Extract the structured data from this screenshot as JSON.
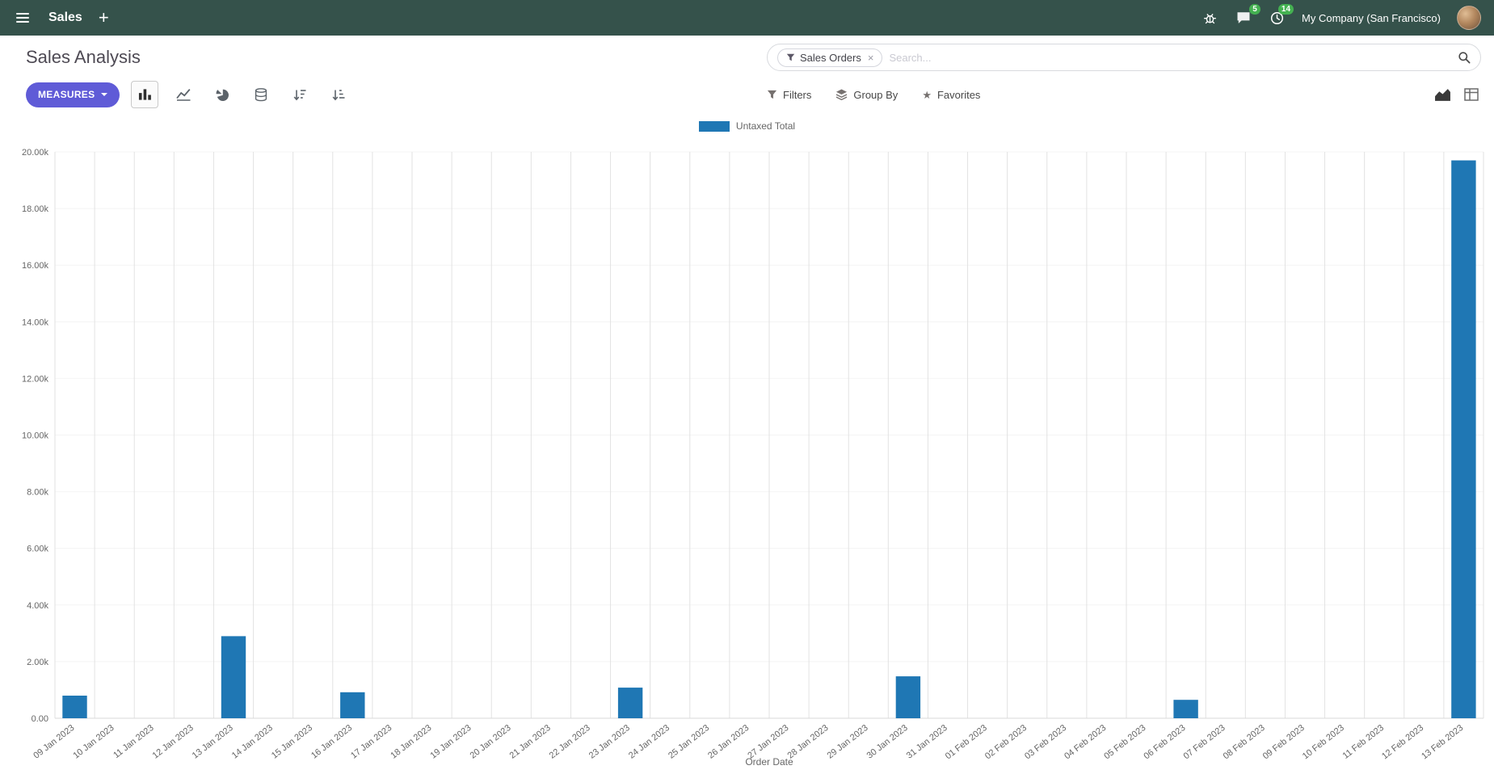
{
  "colors": {
    "navbar_bg": "#35524b",
    "primary_button": "#5f5bd7",
    "badge_green": "#44b151",
    "bar_blue": "#1f77b4"
  },
  "navbar": {
    "app_name": "Sales",
    "plus": "+",
    "message_badge": "5",
    "activity_badge": "14",
    "company": "My Company (San Francisco)"
  },
  "control_panel": {
    "title": "Sales Analysis",
    "search": {
      "facet_label": "Sales Orders",
      "facet_remove": "×",
      "placeholder": "Search..."
    },
    "toolbar": {
      "measures_label": "MEASURES",
      "filters_label": "Filters",
      "group_by_label": "Group By",
      "favorites_label": "Favorites"
    }
  },
  "chart_data": {
    "type": "bar",
    "title": "",
    "xlabel": "Order Date",
    "ylabel": "",
    "ylim": [
      0,
      20000
    ],
    "ytick_step": 2000,
    "ytick_labels": [
      "0.00",
      "2.00k",
      "4.00k",
      "6.00k",
      "8.00k",
      "10.00k",
      "12.00k",
      "14.00k",
      "16.00k",
      "18.00k",
      "20.00k"
    ],
    "grid": "vertical",
    "legend_position": "top-center",
    "bar_color": "#1f77b4",
    "categories": [
      "09 Jan 2023",
      "10 Jan 2023",
      "11 Jan 2023",
      "12 Jan 2023",
      "13 Jan 2023",
      "14 Jan 2023",
      "15 Jan 2023",
      "16 Jan 2023",
      "17 Jan 2023",
      "18 Jan 2023",
      "19 Jan 2023",
      "20 Jan 2023",
      "21 Jan 2023",
      "22 Jan 2023",
      "23 Jan 2023",
      "24 Jan 2023",
      "25 Jan 2023",
      "26 Jan 2023",
      "27 Jan 2023",
      "28 Jan 2023",
      "29 Jan 2023",
      "30 Jan 2023",
      "31 Jan 2023",
      "01 Feb 2023",
      "02 Feb 2023",
      "03 Feb 2023",
      "04 Feb 2023",
      "05 Feb 2023",
      "06 Feb 2023",
      "07 Feb 2023",
      "08 Feb 2023",
      "09 Feb 2023",
      "10 Feb 2023",
      "11 Feb 2023",
      "12 Feb 2023",
      "13 Feb 2023"
    ],
    "series": [
      {
        "name": "Untaxed Total",
        "values": [
          800,
          0,
          0,
          0,
          2900,
          0,
          0,
          920,
          0,
          0,
          0,
          0,
          0,
          0,
          1080,
          0,
          0,
          0,
          0,
          0,
          0,
          1480,
          0,
          0,
          0,
          0,
          0,
          0,
          650,
          0,
          0,
          0,
          0,
          0,
          0,
          19700
        ]
      }
    ]
  }
}
